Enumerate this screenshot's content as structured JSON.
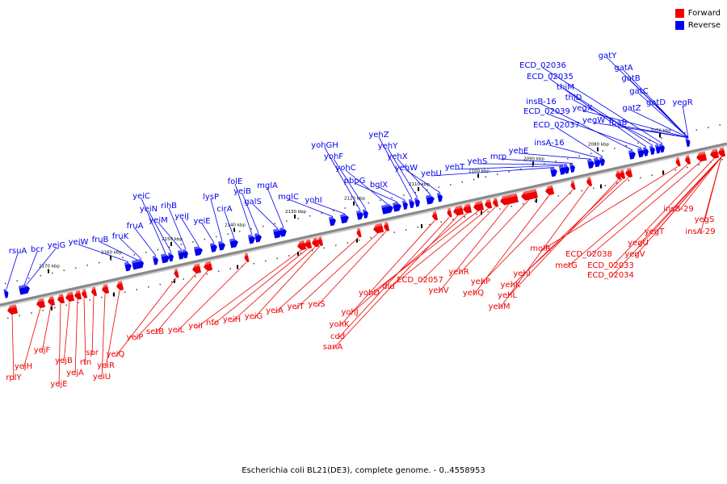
{
  "legend": {
    "items": [
      {
        "label": "Forward",
        "color": "#ee0000"
      },
      {
        "label": "Reverse",
        "color": "#0000ee"
      }
    ]
  },
  "caption": "Escherichia coli BL21(DE3), complete genome. - 0..4558953",
  "colors": {
    "forward": "#ee0000",
    "reverse": "#0000ee",
    "axis": "#888888",
    "tick": "#000000"
  },
  "axis": {
    "tick_labels": [
      "2070 kbp",
      "2080 kbp",
      "2090 kbp",
      "2100 kbp",
      "2110 kbp",
      "2120 kbp",
      "2130 kbp",
      "2140 kbp",
      "2150 kbp",
      "2160 kbp",
      "2170 kbp"
    ]
  },
  "genes": {
    "reverse": [
      "rsuA",
      "bcr",
      "yejG",
      "yeiW",
      "fruB",
      "fruK",
      "fruA",
      "yeiC",
      "yeiN",
      "yeiM",
      "rihB",
      "yeiJ",
      "yeiE",
      "lysP",
      "cirA",
      "folE",
      "yeiB",
      "galS",
      "mglA",
      "mglC",
      "yohI",
      "yohGH",
      "yohF",
      "yohC",
      "pbpG",
      "bglX",
      "yehZ",
      "yehY",
      "yehX",
      "yehW",
      "yehU",
      "yehT",
      "yehS",
      "mrp",
      "yehE",
      "insA-16",
      "ECD_02037",
      "insB-16",
      "ECD_02039",
      "ECD_02035",
      "thiM",
      "thiD",
      "ECD_02036",
      "yegX",
      "yegW",
      "fbaB",
      "gatY",
      "gatA",
      "gatB",
      "gatC",
      "gatZ",
      "gatD",
      "yegR"
    ],
    "forward": [
      "rplY",
      "yejH",
      "yejF",
      "yejE",
      "yejB",
      "yejA",
      "rtn",
      "spr",
      "yeiU",
      "yeiR",
      "yeiQ",
      "yeiP",
      "setB",
      "yeiL",
      "yeiI",
      "nfo",
      "yeiH",
      "yeiG",
      "yeiA",
      "yeiT",
      "yeiS",
      "yohK",
      "cdd",
      "sanA",
      "yohJ",
      "yohD",
      "dld",
      "ECD_02057",
      "yehV",
      "yehR",
      "yehQ",
      "yehP",
      "yehM",
      "yehL",
      "yehK",
      "yehI",
      "molR",
      "metG",
      "ECD_02038",
      "ECD_02033",
      "ECD_02034",
      "yegV",
      "yegU",
      "yegT",
      "insB-29",
      "yegS",
      "insA-29"
    ]
  }
}
